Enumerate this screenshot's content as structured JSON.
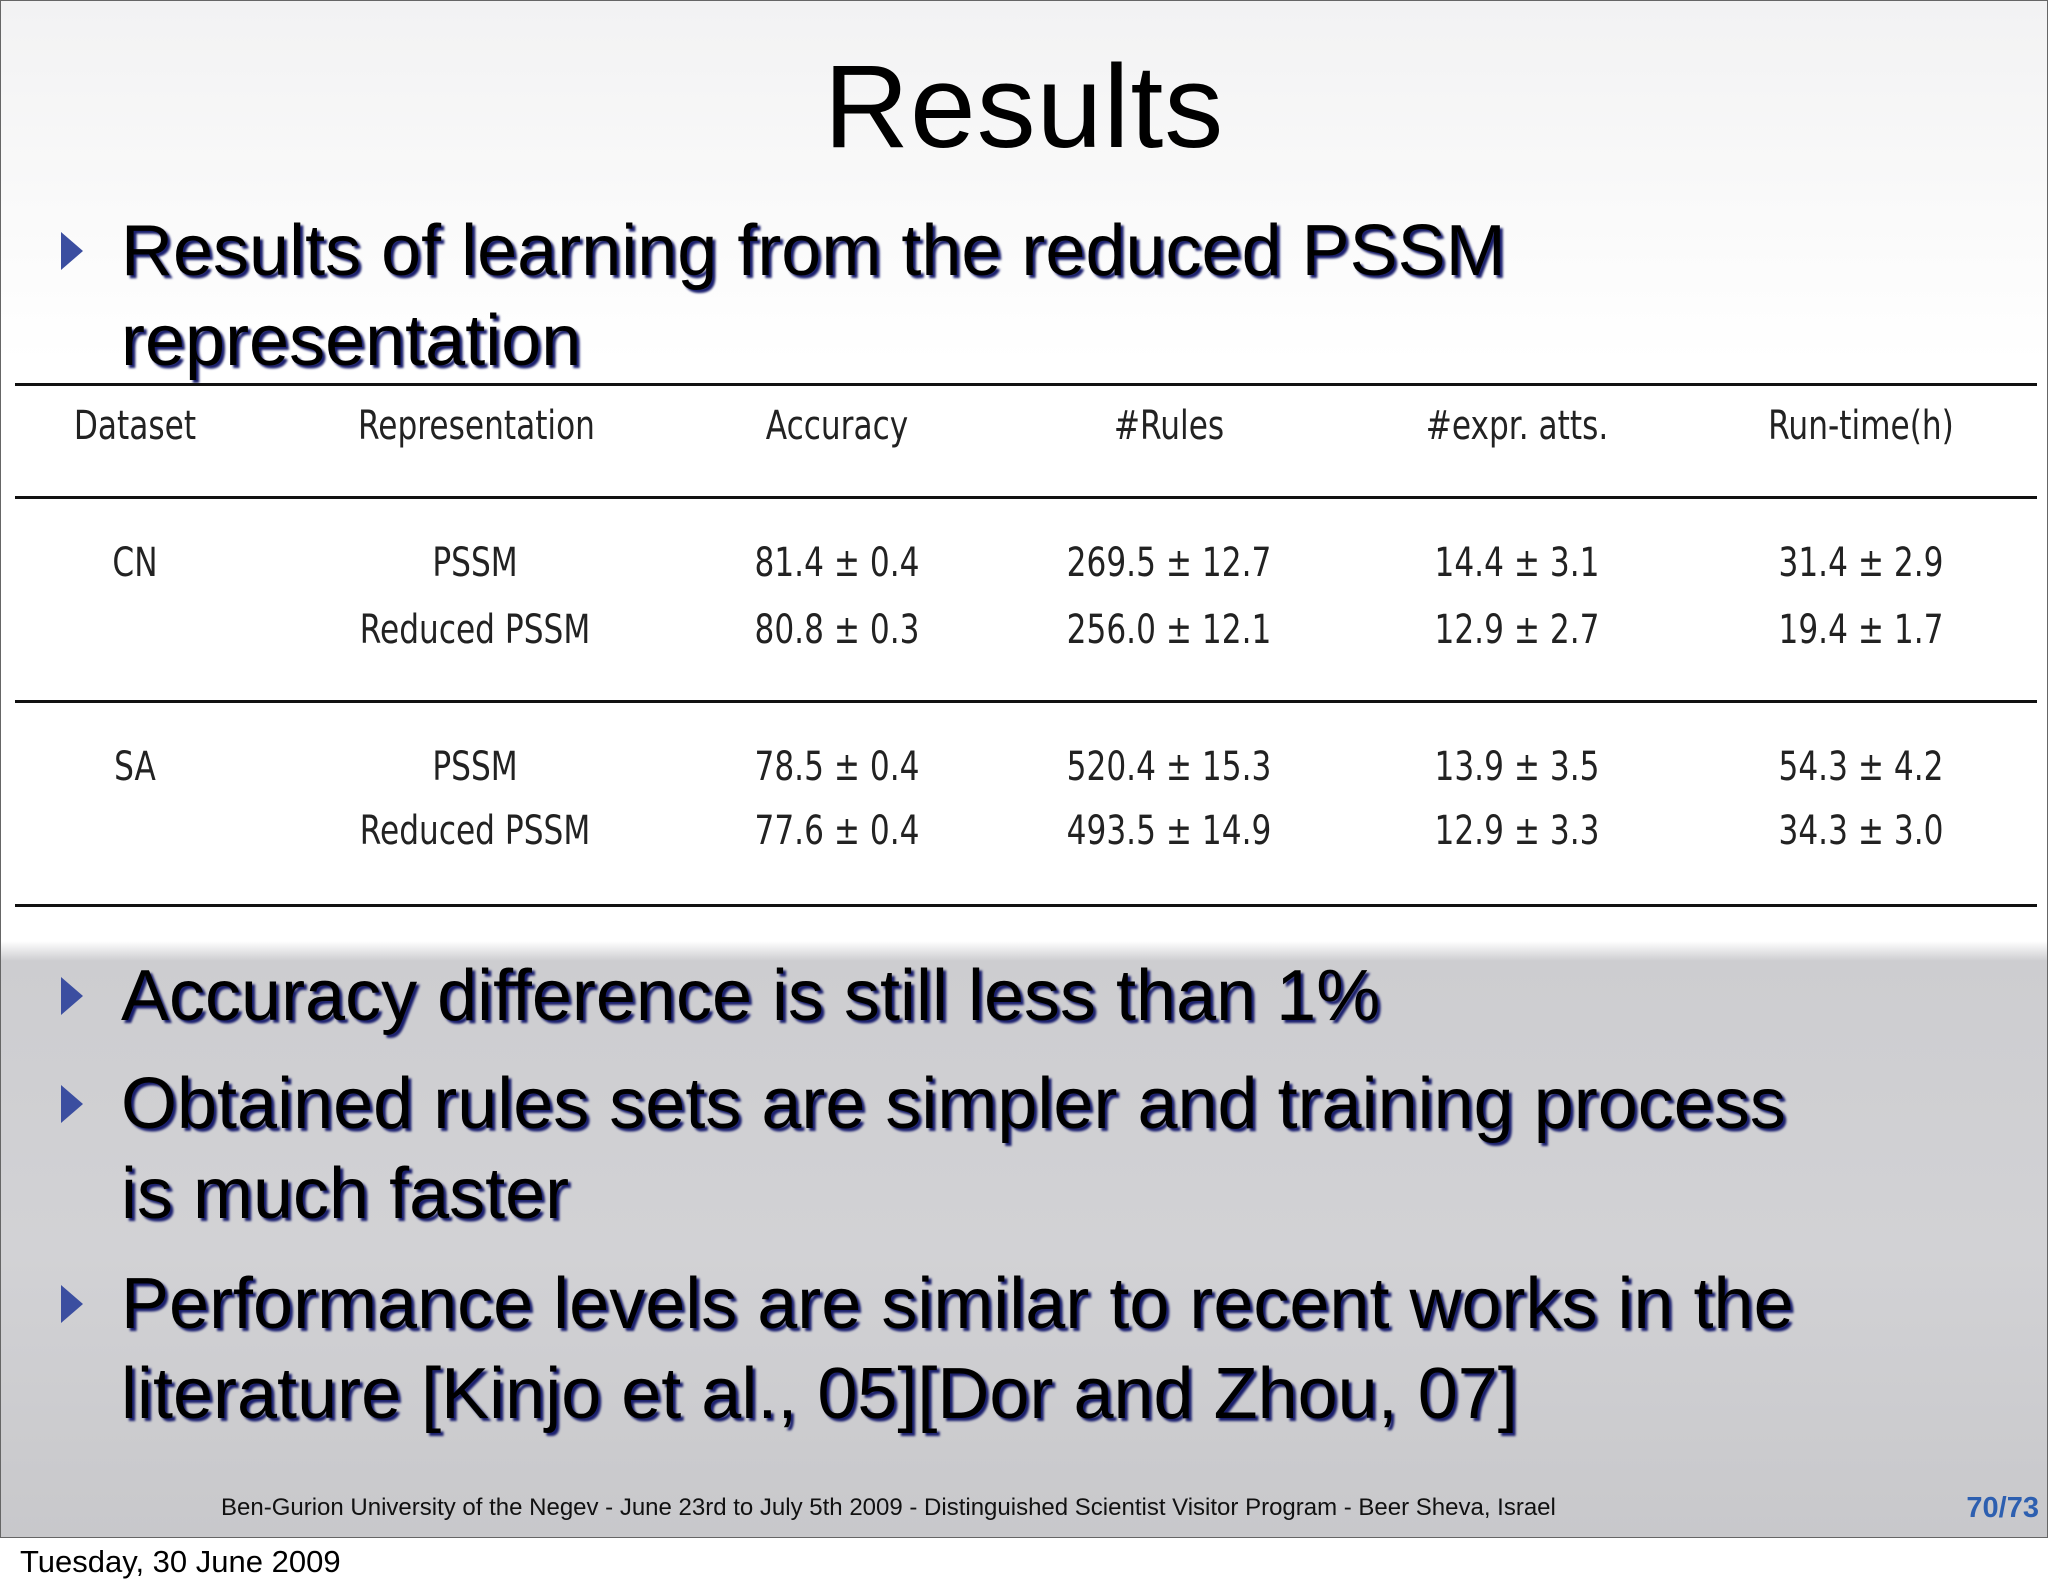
{
  "title": "Results",
  "bullets_top": [
    {
      "line1": "Results of learning from the reduced PSSM",
      "line2": "representation"
    }
  ],
  "table": {
    "headers": [
      "Dataset",
      "Representation",
      "Accuracy",
      "#Rules",
      "#expr. atts.",
      "Run-time(h)"
    ],
    "groups": [
      {
        "dataset": "CN",
        "rows": [
          {
            "representation": "PSSM",
            "accuracy": "81.4 ± 0.4",
            "rules": "269.5 ± 12.7",
            "expr": "14.4 ± 3.1",
            "runtime": "31.4 ± 2.9"
          },
          {
            "representation": "Reduced PSSM",
            "accuracy": "80.8 ± 0.3",
            "rules": "256.0 ± 12.1",
            "expr": "12.9 ± 2.7",
            "runtime": "19.4 ± 1.7"
          }
        ]
      },
      {
        "dataset": "SA",
        "rows": [
          {
            "representation": "PSSM",
            "accuracy": "78.5 ± 0.4",
            "rules": "520.4 ± 15.3",
            "expr": "13.9 ± 3.5",
            "runtime": "54.3 ± 4.2"
          },
          {
            "representation": "Reduced PSSM",
            "accuracy": "77.6 ± 0.4",
            "rules": "493.5 ± 14.9",
            "expr": "12.9 ± 3.3",
            "runtime": "34.3 ± 3.0"
          }
        ]
      }
    ]
  },
  "bullets_bottom": [
    {
      "line1": "Accuracy difference is still less than 1%"
    },
    {
      "line1": "Obtained rules sets are simpler and training process",
      "line2": "is much faster"
    },
    {
      "line1": "Performance levels are similar to recent works in the",
      "line2": "literature [Kinjo et al., 05][Dor and Zhou, 07]"
    }
  ],
  "footer": "Ben-Gurion University of the Negev - June 23rd to July 5th 2009 -  Distinguished Scientist Visitor Program - Beer Sheva, Israel",
  "page_number": "70/73",
  "date": "Tuesday, 30 June 2009",
  "colors": {
    "bullet_arrow": "#3b4ea0",
    "page_number": "#2d5fb0",
    "text_shadow": "#1a1f6e"
  }
}
